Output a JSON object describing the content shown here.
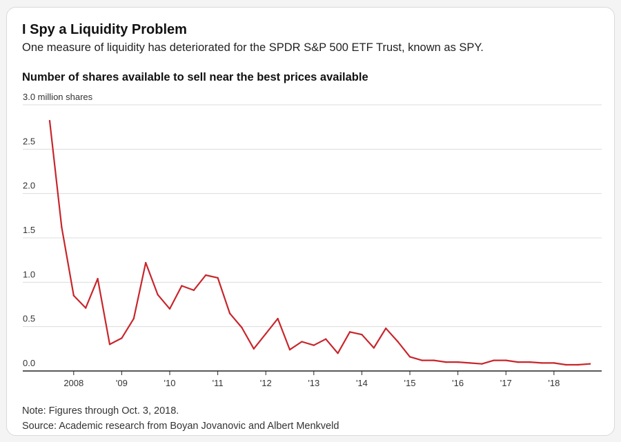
{
  "header": {
    "title": "I Spy a Liquidity Problem",
    "subtitle": "One measure of liquidity has deteriorated for the SPDR S&P 500 ETF Trust, known as SPY."
  },
  "footer": {
    "note": "Note: Figures through Oct. 3, 2018.",
    "source": "Source: Academic research from Boyan Jovanovic and Albert Menkveld"
  },
  "chart_data": {
    "type": "line",
    "title": "Number of shares available to sell near the best prices available",
    "ylabel": "",
    "xlabel": "",
    "ylim": [
      0,
      3.0
    ],
    "xlim": [
      2007.5,
      2018.85
    ],
    "y_ticks": [
      {
        "value": 0.0,
        "label": "0.0"
      },
      {
        "value": 0.5,
        "label": "0.5"
      },
      {
        "value": 1.0,
        "label": "1.0"
      },
      {
        "value": 1.5,
        "label": "1.5"
      },
      {
        "value": 2.0,
        "label": "2.0"
      },
      {
        "value": 2.5,
        "label": "2.5"
      },
      {
        "value": 3.0,
        "label": "3.0 million shares"
      }
    ],
    "x_ticks": [
      {
        "value": 2008,
        "label": "2008"
      },
      {
        "value": 2009,
        "label": "'09"
      },
      {
        "value": 2010,
        "label": "'10"
      },
      {
        "value": 2011,
        "label": "'11"
      },
      {
        "value": 2012,
        "label": "'12"
      },
      {
        "value": 2013,
        "label": "'13"
      },
      {
        "value": 2014,
        "label": "'14"
      },
      {
        "value": 2015,
        "label": "'15"
      },
      {
        "value": 2016,
        "label": "'16"
      },
      {
        "value": 2017,
        "label": "'17"
      },
      {
        "value": 2018,
        "label": "'18"
      }
    ],
    "grid": true,
    "line_color": "#c8252b",
    "series": [
      {
        "x": [
          2007.5,
          2007.75,
          2008.0,
          2008.25,
          2008.5,
          2008.75,
          2009.0,
          2009.25,
          2009.5,
          2009.75,
          2010.0,
          2010.25,
          2010.5,
          2010.75,
          2011.0,
          2011.25,
          2011.5,
          2011.75,
          2012.0,
          2012.25,
          2012.5,
          2012.75,
          2013.0,
          2013.25,
          2013.5,
          2013.75,
          2014.0,
          2014.25,
          2014.5,
          2014.75,
          2015.0,
          2015.25,
          2015.5,
          2015.75,
          2016.0,
          2016.25,
          2016.5,
          2016.75,
          2017.0,
          2017.25,
          2017.5,
          2017.75,
          2018.0,
          2018.25,
          2018.5,
          2018.75
        ],
        "values": [
          2.82,
          1.62,
          0.85,
          0.71,
          1.04,
          0.3,
          0.37,
          0.59,
          1.22,
          0.86,
          0.7,
          0.96,
          0.91,
          1.08,
          1.05,
          0.65,
          0.49,
          0.25,
          0.42,
          0.59,
          0.24,
          0.33,
          0.29,
          0.36,
          0.2,
          0.44,
          0.41,
          0.26,
          0.48,
          0.33,
          0.16,
          0.12,
          0.12,
          0.1,
          0.1,
          0.09,
          0.08,
          0.12,
          0.12,
          0.1,
          0.1,
          0.09,
          0.09,
          0.07,
          0.07,
          0.08
        ]
      }
    ]
  }
}
